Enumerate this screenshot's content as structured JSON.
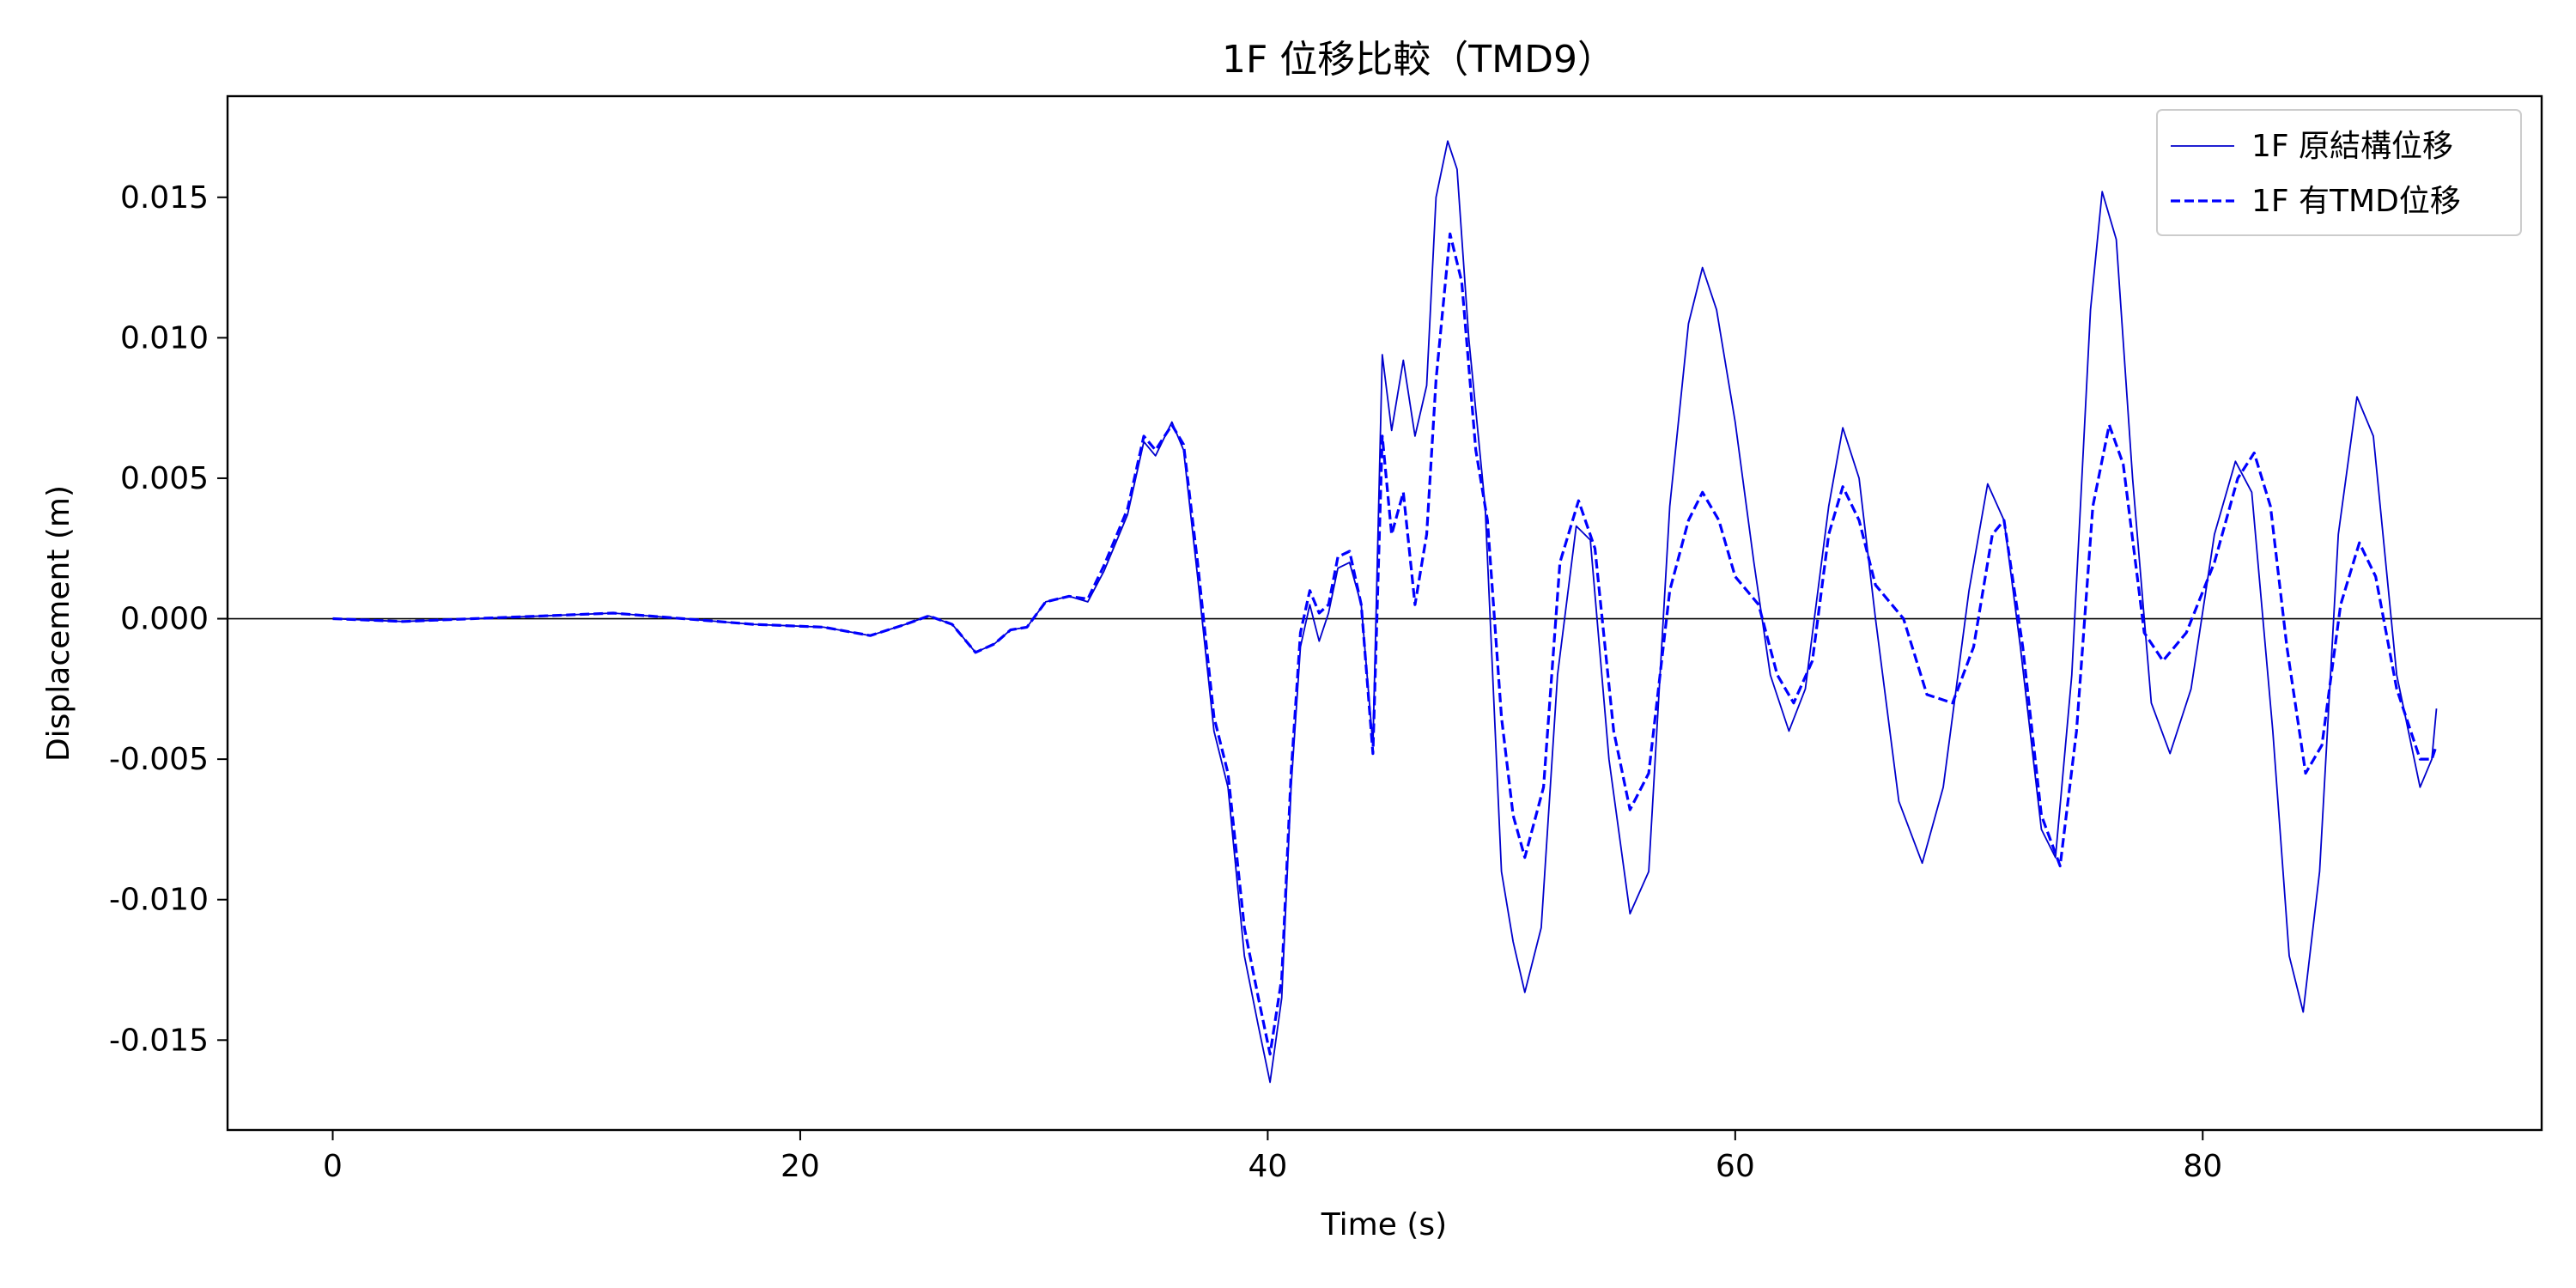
{
  "chart_data": {
    "type": "line",
    "title": "1F 位移比較（TMD9）",
    "xlabel": "Time (s)",
    "ylabel": "Displacement (m)",
    "xlim": [
      -4.5,
      94.5
    ],
    "ylim": [
      -0.0182,
      0.0186
    ],
    "x_ticks": [
      0,
      20,
      40,
      60,
      80
    ],
    "y_ticks": [
      -0.015,
      -0.01,
      -0.005,
      0.0,
      0.005,
      0.01,
      0.015
    ],
    "x_tick_labels": [
      "0",
      "20",
      "40",
      "60",
      "80"
    ],
    "y_tick_labels": [
      "-0.015",
      "-0.010",
      "-0.005",
      "0.000",
      "0.005",
      "0.010",
      "0.015"
    ],
    "grid": false,
    "zero_line": true,
    "legend_position": "top-right",
    "series": [
      {
        "name": "1F 原結構位移",
        "color": "#0000cc",
        "dash": "solid",
        "points": [
          [
            0,
            0
          ],
          [
            3,
            -0.0001
          ],
          [
            6,
            0
          ],
          [
            9,
            0.0001
          ],
          [
            12,
            0.0002
          ],
          [
            15,
            0
          ],
          [
            18,
            -0.0002
          ],
          [
            21,
            -0.0003
          ],
          [
            23,
            -0.0006
          ],
          [
            24.5,
            -0.0002
          ],
          [
            25.5,
            0.0001
          ],
          [
            26.5,
            -0.0002
          ],
          [
            27.5,
            -0.0012
          ],
          [
            28.3,
            -0.0009
          ],
          [
            29,
            -0.0004
          ],
          [
            29.7,
            -0.0003
          ],
          [
            30.5,
            0.0006
          ],
          [
            31.5,
            0.0008
          ],
          [
            32.3,
            0.0006
          ],
          [
            33,
            0.0017
          ],
          [
            34,
            0.0037
          ],
          [
            34.7,
            0.0063
          ],
          [
            35.2,
            0.0058
          ],
          [
            35.9,
            0.007
          ],
          [
            36.4,
            0.006
          ],
          [
            37,
            0.0015
          ],
          [
            37.7,
            -0.004
          ],
          [
            38.3,
            -0.006
          ],
          [
            39,
            -0.012
          ],
          [
            39.6,
            -0.0145
          ],
          [
            40.1,
            -0.0165
          ],
          [
            40.6,
            -0.0135
          ],
          [
            41,
            -0.006
          ],
          [
            41.4,
            -0.001
          ],
          [
            41.8,
            0.0005
          ],
          [
            42.2,
            -0.0008
          ],
          [
            42.6,
            0.0002
          ],
          [
            43,
            0.0018
          ],
          [
            43.5,
            0.002
          ],
          [
            44,
            0.0005
          ],
          [
            44.5,
            -0.0045
          ],
          [
            44.9,
            0.0094
          ],
          [
            45.3,
            0.0067
          ],
          [
            45.8,
            0.0092
          ],
          [
            46.3,
            0.0065
          ],
          [
            46.8,
            0.0083
          ],
          [
            47.2,
            0.015
          ],
          [
            47.7,
            0.017
          ],
          [
            48.1,
            0.016
          ],
          [
            48.6,
            0.01
          ],
          [
            49.3,
            0.004
          ],
          [
            50,
            -0.009
          ],
          [
            50.5,
            -0.0115
          ],
          [
            51,
            -0.0133
          ],
          [
            51.7,
            -0.011
          ],
          [
            52.4,
            -0.002
          ],
          [
            53.2,
            0.0033
          ],
          [
            53.8,
            0.0028
          ],
          [
            54.6,
            -0.005
          ],
          [
            55.5,
            -0.0105
          ],
          [
            56.3,
            -0.009
          ],
          [
            57.2,
            0.004
          ],
          [
            58,
            0.0105
          ],
          [
            58.6,
            0.0125
          ],
          [
            59.2,
            0.011
          ],
          [
            60,
            0.007
          ],
          [
            60.8,
            0.002
          ],
          [
            61.5,
            -0.002
          ],
          [
            62.3,
            -0.004
          ],
          [
            63,
            -0.0025
          ],
          [
            64,
            0.004
          ],
          [
            64.6,
            0.0068
          ],
          [
            65.3,
            0.005
          ],
          [
            66,
            0.0
          ],
          [
            67,
            -0.0065
          ],
          [
            68,
            -0.0087
          ],
          [
            68.9,
            -0.006
          ],
          [
            70,
            0.001
          ],
          [
            70.8,
            0.0048
          ],
          [
            71.5,
            0.0035
          ],
          [
            72.2,
            -0.001
          ],
          [
            73.1,
            -0.0075
          ],
          [
            73.7,
            -0.0085
          ],
          [
            74.4,
            -0.002
          ],
          [
            75.2,
            0.011
          ],
          [
            75.7,
            0.0152
          ],
          [
            76.3,
            0.0135
          ],
          [
            77,
            0.005
          ],
          [
            77.8,
            -0.003
          ],
          [
            78.6,
            -0.0048
          ],
          [
            79.5,
            -0.0025
          ],
          [
            80.5,
            0.003
          ],
          [
            81.4,
            0.0056
          ],
          [
            82.1,
            0.0045
          ],
          [
            83,
            -0.004
          ],
          [
            83.7,
            -0.012
          ],
          [
            84.3,
            -0.014
          ],
          [
            85,
            -0.009
          ],
          [
            85.8,
            0.003
          ],
          [
            86.6,
            0.0079
          ],
          [
            87.3,
            0.0065
          ],
          [
            88.3,
            -0.002
          ],
          [
            89.3,
            -0.006
          ],
          [
            89.8,
            -0.005
          ],
          [
            90,
            -0.0032
          ]
        ]
      },
      {
        "name": "1F 有TMD位移",
        "color": "#0000ff",
        "dash": "dashed",
        "points": [
          [
            0,
            0
          ],
          [
            3,
            -0.0001
          ],
          [
            6,
            0
          ],
          [
            9,
            0.0001
          ],
          [
            12,
            0.0002
          ],
          [
            15,
            0
          ],
          [
            18,
            -0.0002
          ],
          [
            21,
            -0.0003
          ],
          [
            23,
            -0.0006
          ],
          [
            24.5,
            -0.0002
          ],
          [
            25.5,
            0.0001
          ],
          [
            26.5,
            -0.0002
          ],
          [
            27.5,
            -0.0012
          ],
          [
            28.3,
            -0.0009
          ],
          [
            29,
            -0.0004
          ],
          [
            29.7,
            -0.0003
          ],
          [
            30.5,
            0.0006
          ],
          [
            31.5,
            0.0008
          ],
          [
            32.3,
            0.0007
          ],
          [
            33,
            0.0019
          ],
          [
            34,
            0.0039
          ],
          [
            34.7,
            0.0065
          ],
          [
            35.2,
            0.006
          ],
          [
            35.9,
            0.0069
          ],
          [
            36.4,
            0.0062
          ],
          [
            37,
            0.002
          ],
          [
            37.7,
            -0.0035
          ],
          [
            38.3,
            -0.0055
          ],
          [
            39,
            -0.011
          ],
          [
            39.6,
            -0.0135
          ],
          [
            40.1,
            -0.0155
          ],
          [
            40.6,
            -0.0128
          ],
          [
            41,
            -0.0055
          ],
          [
            41.4,
            -0.0005
          ],
          [
            41.8,
            0.001
          ],
          [
            42.2,
            0.0002
          ],
          [
            42.6,
            0.0005
          ],
          [
            43,
            0.0022
          ],
          [
            43.5,
            0.0024
          ],
          [
            44,
            0.0005
          ],
          [
            44.5,
            -0.0048
          ],
          [
            44.9,
            0.0065
          ],
          [
            45.3,
            0.003
          ],
          [
            45.8,
            0.0045
          ],
          [
            46.3,
            0.0005
          ],
          [
            46.8,
            0.003
          ],
          [
            47.2,
            0.0085
          ],
          [
            47.8,
            0.0137
          ],
          [
            48.3,
            0.012
          ],
          [
            48.9,
            0.006
          ],
          [
            49.4,
            0.0035
          ],
          [
            50,
            -0.0035
          ],
          [
            50.5,
            -0.007
          ],
          [
            51,
            -0.0085
          ],
          [
            51.8,
            -0.006
          ],
          [
            52.5,
            0.002
          ],
          [
            53.3,
            0.0042
          ],
          [
            54,
            0.0025
          ],
          [
            54.8,
            -0.004
          ],
          [
            55.5,
            -0.0068
          ],
          [
            56.3,
            -0.0055
          ],
          [
            57.2,
            0.001
          ],
          [
            58,
            0.0035
          ],
          [
            58.6,
            0.0045
          ],
          [
            59.3,
            0.0035
          ],
          [
            60,
            0.0015
          ],
          [
            61,
            0.0005
          ],
          [
            61.8,
            -0.002
          ],
          [
            62.5,
            -0.003
          ],
          [
            63.3,
            -0.0015
          ],
          [
            64,
            0.003
          ],
          [
            64.6,
            0.0047
          ],
          [
            65.3,
            0.0035
          ],
          [
            66,
            0.0012
          ],
          [
            67.2,
            0.0
          ],
          [
            68.2,
            -0.0027
          ],
          [
            69.3,
            -0.003
          ],
          [
            70.2,
            -0.001
          ],
          [
            71,
            0.003
          ],
          [
            71.5,
            0.0035
          ],
          [
            72.3,
            -0.001
          ],
          [
            73.1,
            -0.007
          ],
          [
            73.9,
            -0.0088
          ],
          [
            74.6,
            -0.004
          ],
          [
            75.3,
            0.004
          ],
          [
            76,
            0.0069
          ],
          [
            76.6,
            0.0055
          ],
          [
            77.5,
            -0.0005
          ],
          [
            78.3,
            -0.0015
          ],
          [
            79.3,
            -0.0005
          ],
          [
            80.5,
            0.002
          ],
          [
            81.5,
            0.005
          ],
          [
            82.2,
            0.0059
          ],
          [
            82.9,
            0.004
          ],
          [
            83.6,
            -0.001
          ],
          [
            84.4,
            -0.0055
          ],
          [
            85.1,
            -0.0045
          ],
          [
            85.9,
            0.0005
          ],
          [
            86.7,
            0.0027
          ],
          [
            87.4,
            0.0015
          ],
          [
            88.3,
            -0.0025
          ],
          [
            89.3,
            -0.005
          ],
          [
            89.8,
            -0.005
          ],
          [
            90,
            -0.0045
          ]
        ]
      }
    ]
  }
}
